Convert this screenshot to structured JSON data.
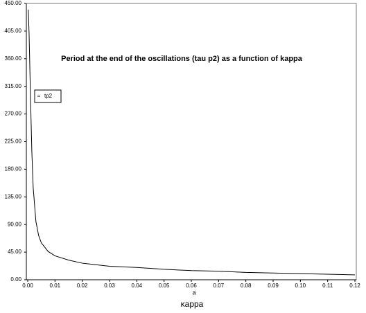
{
  "chart_data": {
    "type": "line",
    "title": "Period at the end of the oscillations  (tau p2) as a function of kappa",
    "x_label": "κappa",
    "x_annotation": "a",
    "x": [
      0.0002,
      0.0005,
      0.001,
      0.0015,
      0.002,
      0.003,
      0.004,
      0.005,
      0.0075,
      0.01,
      0.015,
      0.02,
      0.03,
      0.04,
      0.05,
      0.06,
      0.07,
      0.08,
      0.09,
      0.1,
      0.11,
      0.12
    ],
    "series": [
      {
        "name": "tp2",
        "color": "#000000",
        "values": [
          440,
          400,
          300,
          210,
          150,
          95,
          72,
          60,
          46,
          39,
          32,
          27,
          22,
          20,
          17,
          15,
          14,
          12,
          11,
          10,
          9,
          8
        ]
      }
    ],
    "xlim": [
      0,
      0.12
    ],
    "xticks": [
      {
        "value": 0,
        "label": "0.00"
      },
      {
        "value": 0.01,
        "label": "0.01"
      },
      {
        "value": 0.02,
        "label": "0.02"
      },
      {
        "value": 0.03,
        "label": "0.03"
      },
      {
        "value": 0.04,
        "label": "0.04"
      },
      {
        "value": 0.05,
        "label": "0.05"
      },
      {
        "value": 0.06,
        "label": "0.06"
      },
      {
        "value": 0.07,
        "label": "0.07"
      },
      {
        "value": 0.08,
        "label": "0.08"
      },
      {
        "value": 0.09,
        "label": "0.09"
      },
      {
        "value": 0.1,
        "label": "0.10"
      },
      {
        "value": 0.11,
        "label": "0.11"
      },
      {
        "value": 0.12,
        "label": "0.12"
      }
    ],
    "ylim": [
      0,
      450
    ],
    "yticks": [
      {
        "value": 0,
        "label": "0.00"
      },
      {
        "value": 45,
        "label": "45.00"
      },
      {
        "value": 90,
        "label": "90.00"
      },
      {
        "value": 135,
        "label": "135.00"
      },
      {
        "value": 180,
        "label": "180.00"
      },
      {
        "value": 225,
        "label": "225.00"
      },
      {
        "value": 270,
        "label": "270.00"
      },
      {
        "value": 315,
        "label": "315.00"
      },
      {
        "value": 360,
        "label": "360.00"
      },
      {
        "value": 405,
        "label": "405.00"
      },
      {
        "value": 450,
        "label": "450.00"
      }
    ],
    "legend": "top-left"
  }
}
